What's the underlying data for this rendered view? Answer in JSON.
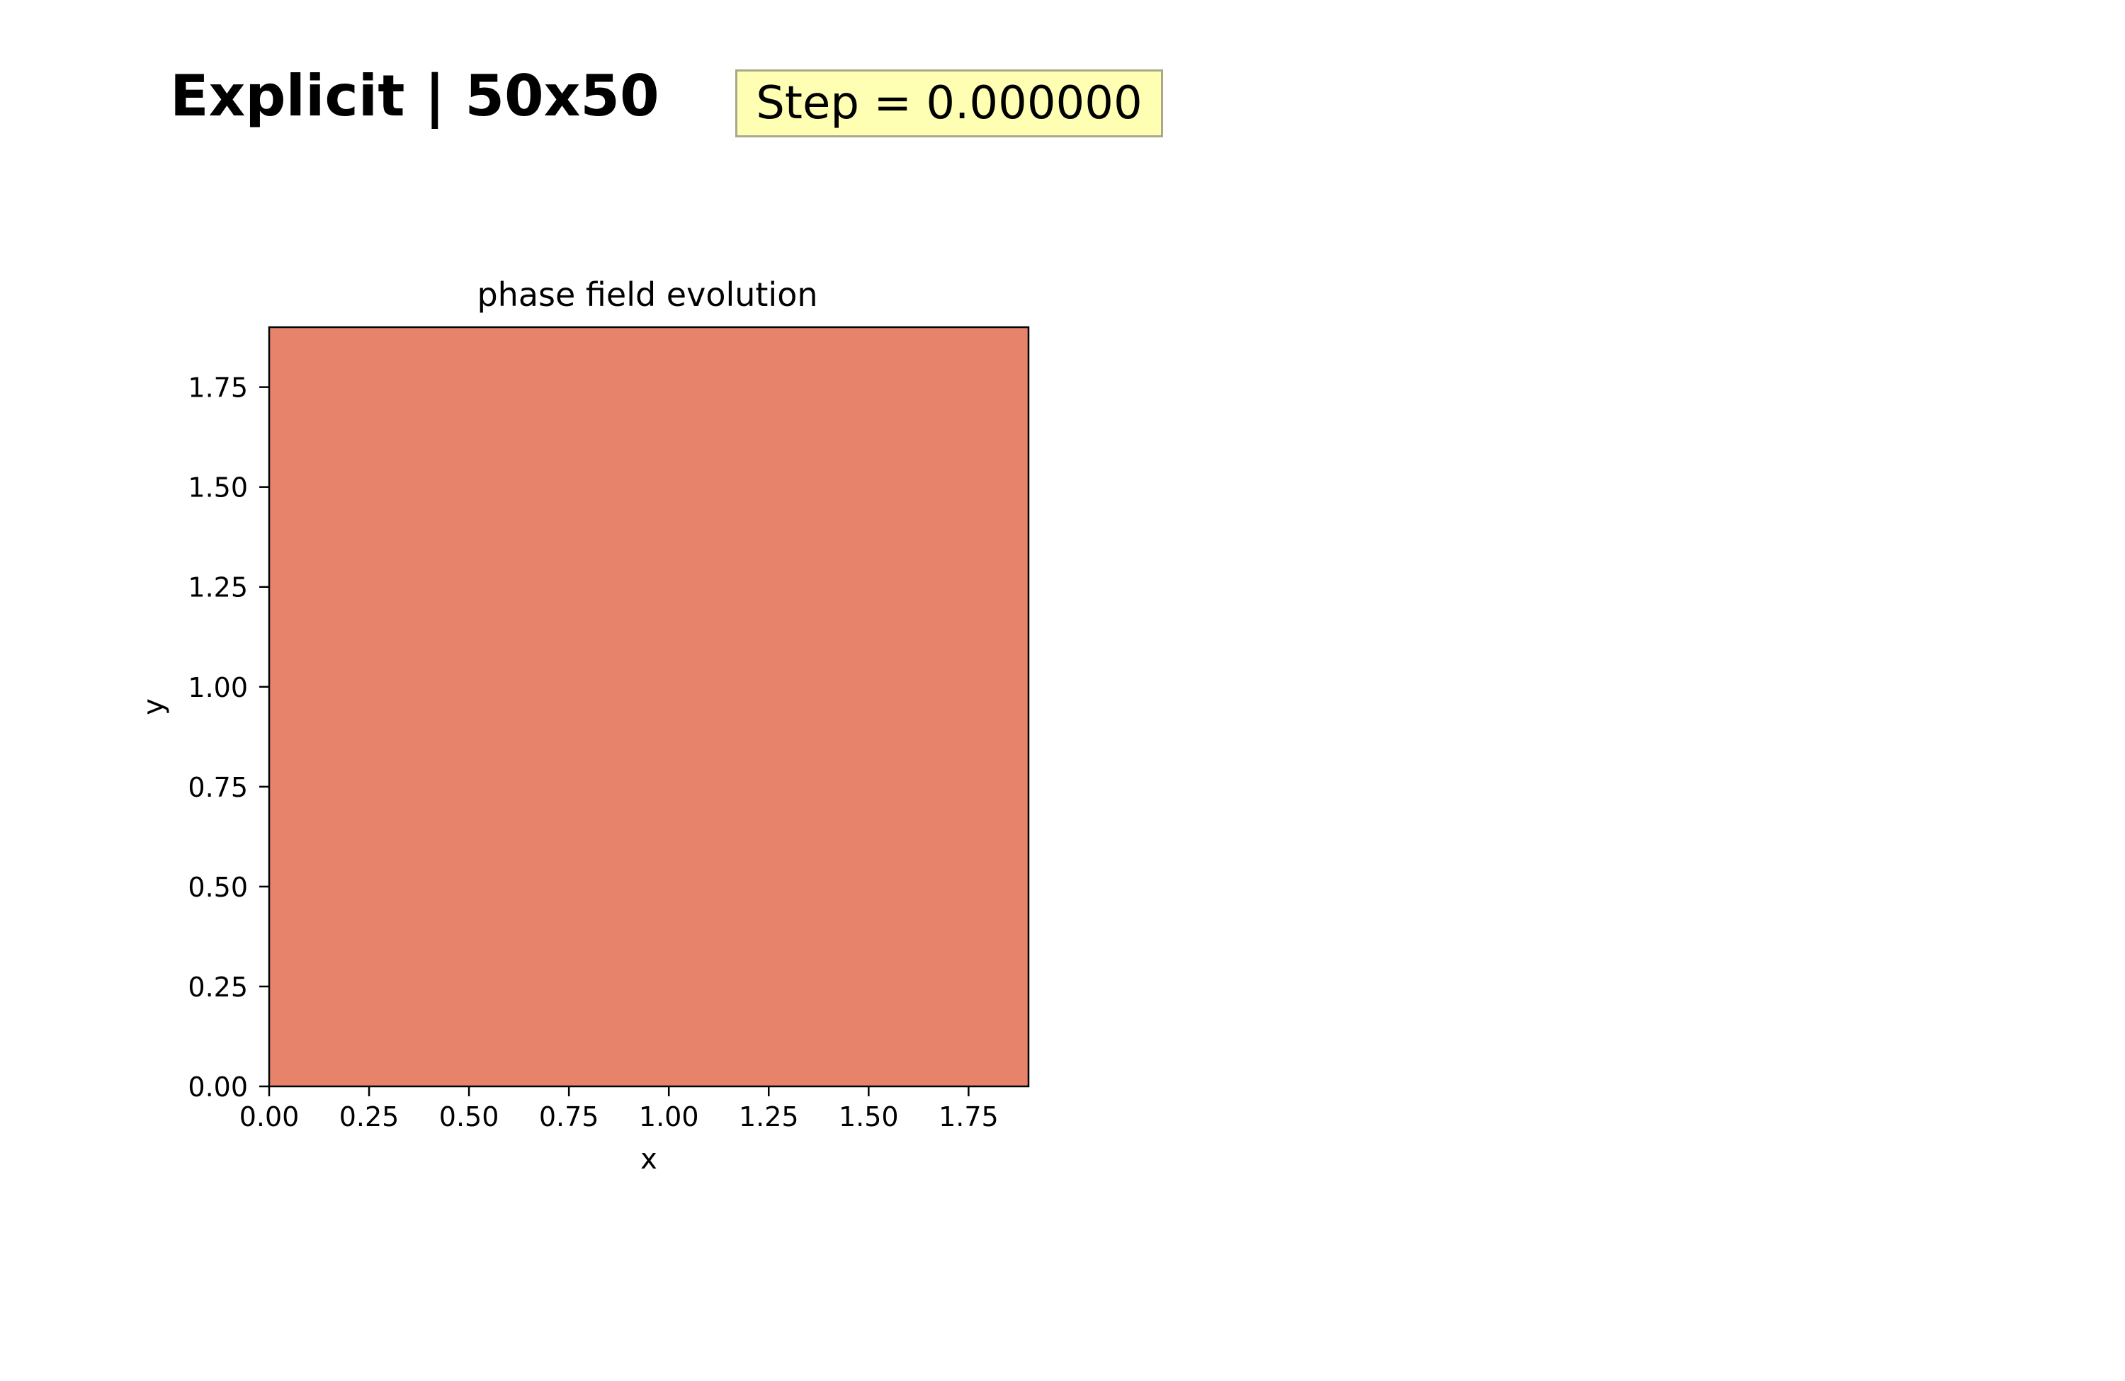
{
  "figure": {
    "title": "Explicit | 50x50",
    "step_label": "Step = 0.000000"
  },
  "chart_data": {
    "type": "heatmap",
    "title": "phase field evolution",
    "xlabel": "x",
    "ylabel": "y",
    "xlim": [
      0,
      1.9
    ],
    "ylim": [
      0,
      1.9
    ],
    "xticks": [
      0.0,
      0.25,
      0.5,
      0.75,
      1.0,
      1.25,
      1.5,
      1.75
    ],
    "yticks": [
      0.0,
      0.25,
      0.5,
      0.75,
      1.0,
      1.25,
      1.5,
      1.75
    ],
    "xtick_labels": [
      "0.00",
      "0.25",
      "0.50",
      "0.75",
      "1.00",
      "1.25",
      "1.50",
      "1.75"
    ],
    "ytick_labels": [
      "0.00",
      "0.25",
      "0.50",
      "0.75",
      "1.00",
      "1.25",
      "1.50",
      "1.75"
    ],
    "grid": false,
    "colors": {
      "field": "#e6836a",
      "axes": "#000000"
    }
  }
}
